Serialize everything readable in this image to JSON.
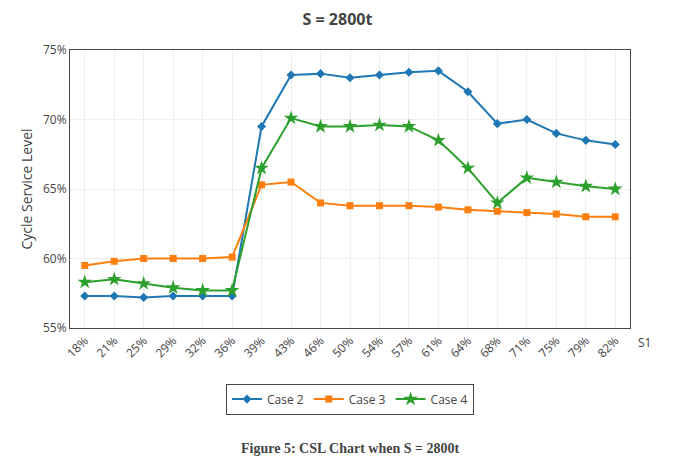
{
  "chart_data": {
    "type": "line",
    "title": "S = 2800t",
    "ylabel": "Cycle Service Level",
    "caption": "Figure 5: CSL Chart when S = 2800t",
    "annotations": [
      {
        "text": "S1"
      }
    ],
    "categories": [
      "18%",
      "21%",
      "25%",
      "29%",
      "32%",
      "36%",
      "39%",
      "43%",
      "46%",
      "50%",
      "54%",
      "57%",
      "61%",
      "64%",
      "68%",
      "71%",
      "75%",
      "79%",
      "82%"
    ],
    "series": [
      {
        "name": "Case 2",
        "marker": "diamond",
        "line_style": "solid",
        "values": [
          57.3,
          57.3,
          57.2,
          57.3,
          57.3,
          57.3,
          69.5,
          73.2,
          73.3,
          73.0,
          73.2,
          73.4,
          73.5,
          72.0,
          69.7,
          70.0,
          69.0,
          68.5,
          68.2
        ]
      },
      {
        "name": "Case 3",
        "marker": "square",
        "line_style": "solid",
        "values": [
          59.5,
          59.8,
          60.0,
          60.0,
          60.0,
          60.1,
          65.3,
          65.5,
          64.0,
          63.8,
          63.8,
          63.8,
          63.7,
          63.5,
          63.4,
          63.3,
          63.2,
          63.0,
          63.0
        ]
      },
      {
        "name": "Case 4",
        "marker": "star",
        "line_style": "solid",
        "values": [
          58.3,
          58.5,
          58.2,
          57.9,
          57.7,
          57.7,
          66.5,
          70.1,
          69.5,
          69.5,
          69.6,
          69.5,
          68.5,
          66.5,
          64.0,
          65.8,
          65.5,
          65.2,
          65.0
        ]
      }
    ],
    "ylim": [
      55,
      75
    ],
    "yticks": [
      {
        "value": 55,
        "label": "55%"
      },
      {
        "value": 60,
        "label": "60%"
      },
      {
        "value": 65,
        "label": "65%"
      },
      {
        "value": 70,
        "label": "70%"
      },
      {
        "value": 75,
        "label": "75%"
      }
    ],
    "grid": true,
    "legend": "bottom"
  }
}
